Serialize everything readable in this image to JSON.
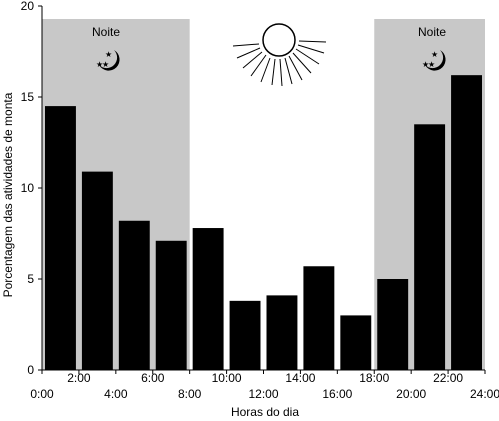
{
  "chart_data": {
    "type": "bar",
    "title": "",
    "xlabel": "Horas do dia",
    "ylabel": "Porcentagem das atividades de monta",
    "ylim": [
      0,
      20
    ],
    "yticks": [
      "0",
      "5",
      "10",
      "15",
      "20"
    ],
    "xticks_lower": [
      "0:00",
      "4:00",
      "8:00",
      "12:00",
      "16:00",
      "20:00",
      "24:00"
    ],
    "xticks_upper": [
      "2:00",
      "6:00",
      "10:00",
      "14:00",
      "18:00",
      "22:00"
    ],
    "categories": [
      "0:00-2:00",
      "2:00-4:00",
      "4:00-6:00",
      "6:00-8:00",
      "8:00-10:00",
      "10:00-12:00",
      "12:00-14:00",
      "14:00-16:00",
      "16:00-18:00",
      "18:00-20:00",
      "20:00-22:00",
      "22:00-24:00"
    ],
    "values": [
      14.5,
      10.9,
      8.2,
      7.1,
      7.8,
      3.8,
      4.1,
      5.7,
      3.0,
      5.0,
      13.5,
      16.2
    ],
    "night_periods": [
      {
        "label": "Noite",
        "start_hour": 0,
        "end_hour": 8
      },
      {
        "label": "Noite",
        "start_hour": 18,
        "end_hour": 24
      }
    ],
    "colors": {
      "bar": "#000000",
      "night": "#c8c8c8"
    },
    "icons": [
      "sun-icon",
      "moon-stars-icon"
    ]
  }
}
